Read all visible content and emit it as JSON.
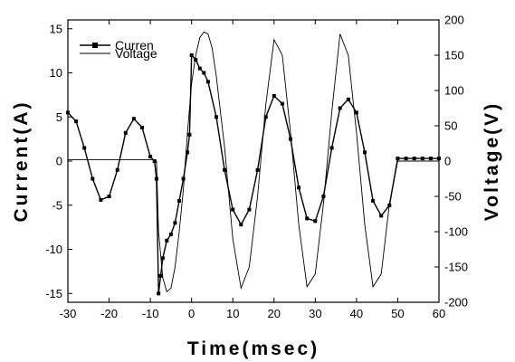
{
  "chart_data": {
    "type": "line",
    "xlabel": "Time(msec)",
    "ylabel_left": "Current(A)",
    "ylabel_right": "Voltage(V)",
    "xlim": [
      -30,
      60
    ],
    "ylim_left": [
      -16,
      16
    ],
    "ylim_right": [
      -200,
      200
    ],
    "x_ticks": [
      -30,
      -20,
      -10,
      0,
      10,
      20,
      30,
      40,
      50,
      60
    ],
    "y_left_ticks": [
      -15,
      -10,
      -5,
      0,
      5,
      10,
      15
    ],
    "y_right_ticks": [
      -200,
      -150,
      -100,
      -50,
      0,
      50,
      100,
      150,
      200
    ],
    "legend_position": "top-left",
    "series": [
      {
        "name": "Curren",
        "axis": "left",
        "style": "line-with-square-markers",
        "color": "#000000",
        "x": [
          -30,
          -28,
          -26,
          -24,
          -22,
          -20,
          -18,
          -16,
          -14,
          -12,
          -10,
          -9,
          -8.5,
          -8,
          -7.5,
          -7,
          -6,
          -5,
          -4,
          -3,
          -2,
          -1,
          -0.5,
          0,
          1,
          2,
          3,
          4,
          6,
          8,
          10,
          12,
          14,
          16,
          18,
          20,
          22,
          24,
          26,
          28,
          30,
          32,
          34,
          36,
          38,
          40,
          42,
          44,
          46,
          48,
          50,
          52,
          54,
          56,
          58,
          60
        ],
        "values": [
          5.5,
          4.5,
          1.5,
          -2.0,
          -4.4,
          -4.0,
          -1.0,
          3.2,
          4.8,
          3.8,
          0.5,
          0.0,
          -2.0,
          -15.0,
          -13.0,
          -11.0,
          -9.0,
          -8.3,
          -7.0,
          -4.5,
          -2.0,
          1.0,
          3.0,
          12.0,
          11.5,
          10.5,
          10.0,
          9.0,
          5.0,
          -1.0,
          -5.5,
          -7.2,
          -5.5,
          -1.0,
          5.0,
          7.4,
          6.5,
          2.5,
          -3.0,
          -6.5,
          -6.8,
          -4.0,
          1.5,
          6.0,
          7.0,
          5.5,
          1.0,
          -4.5,
          -6.2,
          -5.0,
          0.3,
          0.3,
          0.3,
          0.3,
          0.3,
          0.3
        ]
      },
      {
        "name": "Voltage",
        "axis": "right",
        "style": "line",
        "color": "#000000",
        "x": [
          -30,
          -25,
          -20,
          -15,
          -10,
          -9,
          -8.5,
          -8,
          -7,
          -6,
          -5,
          -4,
          -3,
          -2,
          -1,
          0,
          1,
          2,
          3,
          4,
          5,
          6,
          8,
          10,
          12,
          14,
          16,
          18,
          20,
          22,
          24,
          26,
          28,
          30,
          32,
          34,
          36,
          38,
          40,
          42,
          44,
          46,
          48,
          50,
          55,
          60
        ],
        "values": [
          2,
          2,
          2,
          2,
          2,
          2,
          0,
          -100,
          -165,
          -185,
          -180,
          -150,
          -100,
          -40,
          40,
          110,
          150,
          175,
          183,
          180,
          160,
          120,
          20,
          -110,
          -180,
          -150,
          -50,
          80,
          172,
          150,
          40,
          -90,
          -178,
          -160,
          -60,
          70,
          180,
          150,
          40,
          -90,
          -178,
          -160,
          -60,
          0,
          0,
          0
        ]
      }
    ]
  }
}
